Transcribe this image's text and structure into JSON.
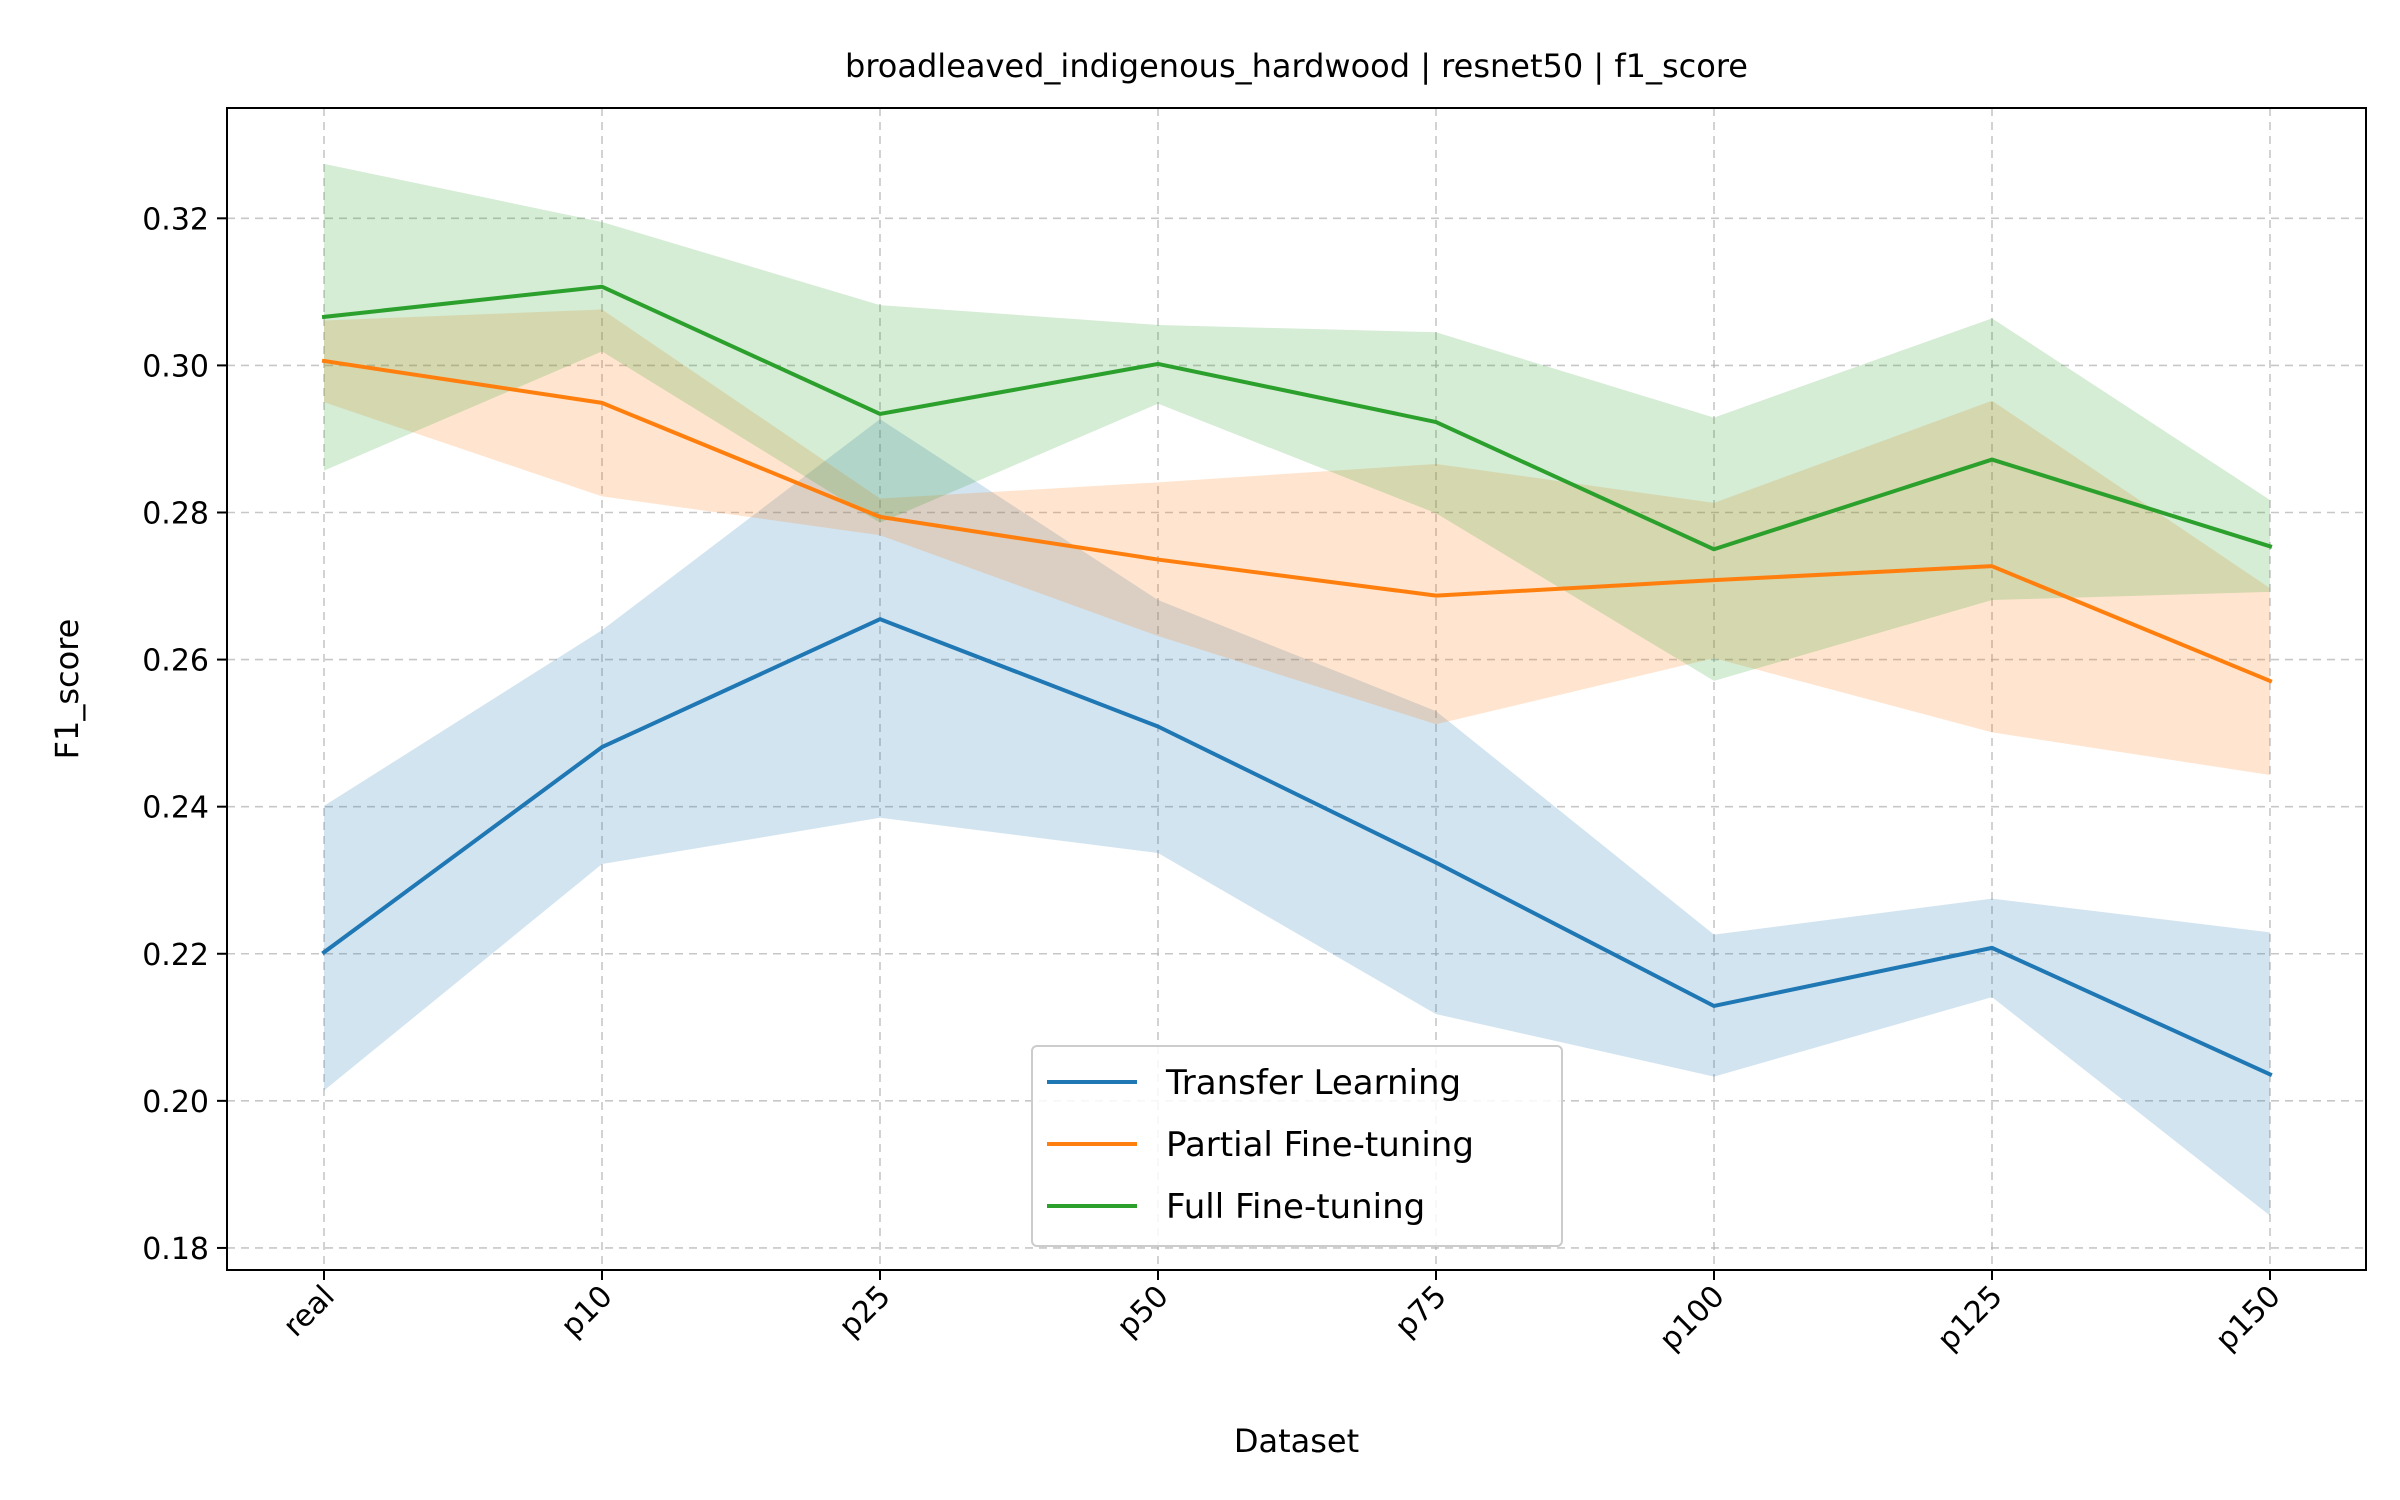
{
  "chart_data": {
    "type": "line",
    "title": "broadleaved_indigenous_hardwood | resnet50 | f1_score",
    "xlabel": "Dataset",
    "ylabel": "F1_score",
    "categories": [
      "real",
      "p10",
      "p25",
      "p50",
      "p75",
      "p100",
      "p125",
      "p150"
    ],
    "ylim": [
      0.177,
      0.335
    ],
    "yticks": [
      "0.18",
      "0.20",
      "0.22",
      "0.24",
      "0.26",
      "0.28",
      "0.30",
      "0.32"
    ],
    "grid": true,
    "legend_position": "lower-center",
    "series": [
      {
        "name": "Transfer Learning",
        "color": "#1f77b4",
        "values": [
          0.2202,
          0.2481,
          0.2655,
          0.2509,
          0.2324,
          0.2129,
          0.2208,
          0.2036
        ],
        "lower": [
          0.2014,
          0.2322,
          0.2385,
          0.2337,
          0.2118,
          0.2033,
          0.2141,
          0.1844
        ],
        "upper": [
          0.2401,
          0.264,
          0.2927,
          0.2681,
          0.253,
          0.2226,
          0.2275,
          0.2229
        ]
      },
      {
        "name": "Partial Fine-tuning",
        "color": "#ff7f0e",
        "values": [
          0.3006,
          0.2949,
          0.2794,
          0.2736,
          0.2687,
          0.2708,
          0.2727,
          0.2571
        ],
        "lower": [
          0.295,
          0.2822,
          0.2769,
          0.2632,
          0.2512,
          0.2602,
          0.2501,
          0.2443
        ],
        "upper": [
          0.3061,
          0.3076,
          0.2819,
          0.2841,
          0.2866,
          0.2813,
          0.2952,
          0.2697
        ]
      },
      {
        "name": "Full Fine-tuning",
        "color": "#2ca02c",
        "values": [
          0.3066,
          0.3107,
          0.2934,
          0.3002,
          0.2923,
          0.275,
          0.2872,
          0.2754
        ],
        "lower": [
          0.2857,
          0.3019,
          0.2786,
          0.2948,
          0.2799,
          0.2571,
          0.2681,
          0.2692
        ],
        "upper": [
          0.3274,
          0.3195,
          0.3082,
          0.3055,
          0.3045,
          0.2929,
          0.3064,
          0.2817
        ]
      }
    ]
  }
}
